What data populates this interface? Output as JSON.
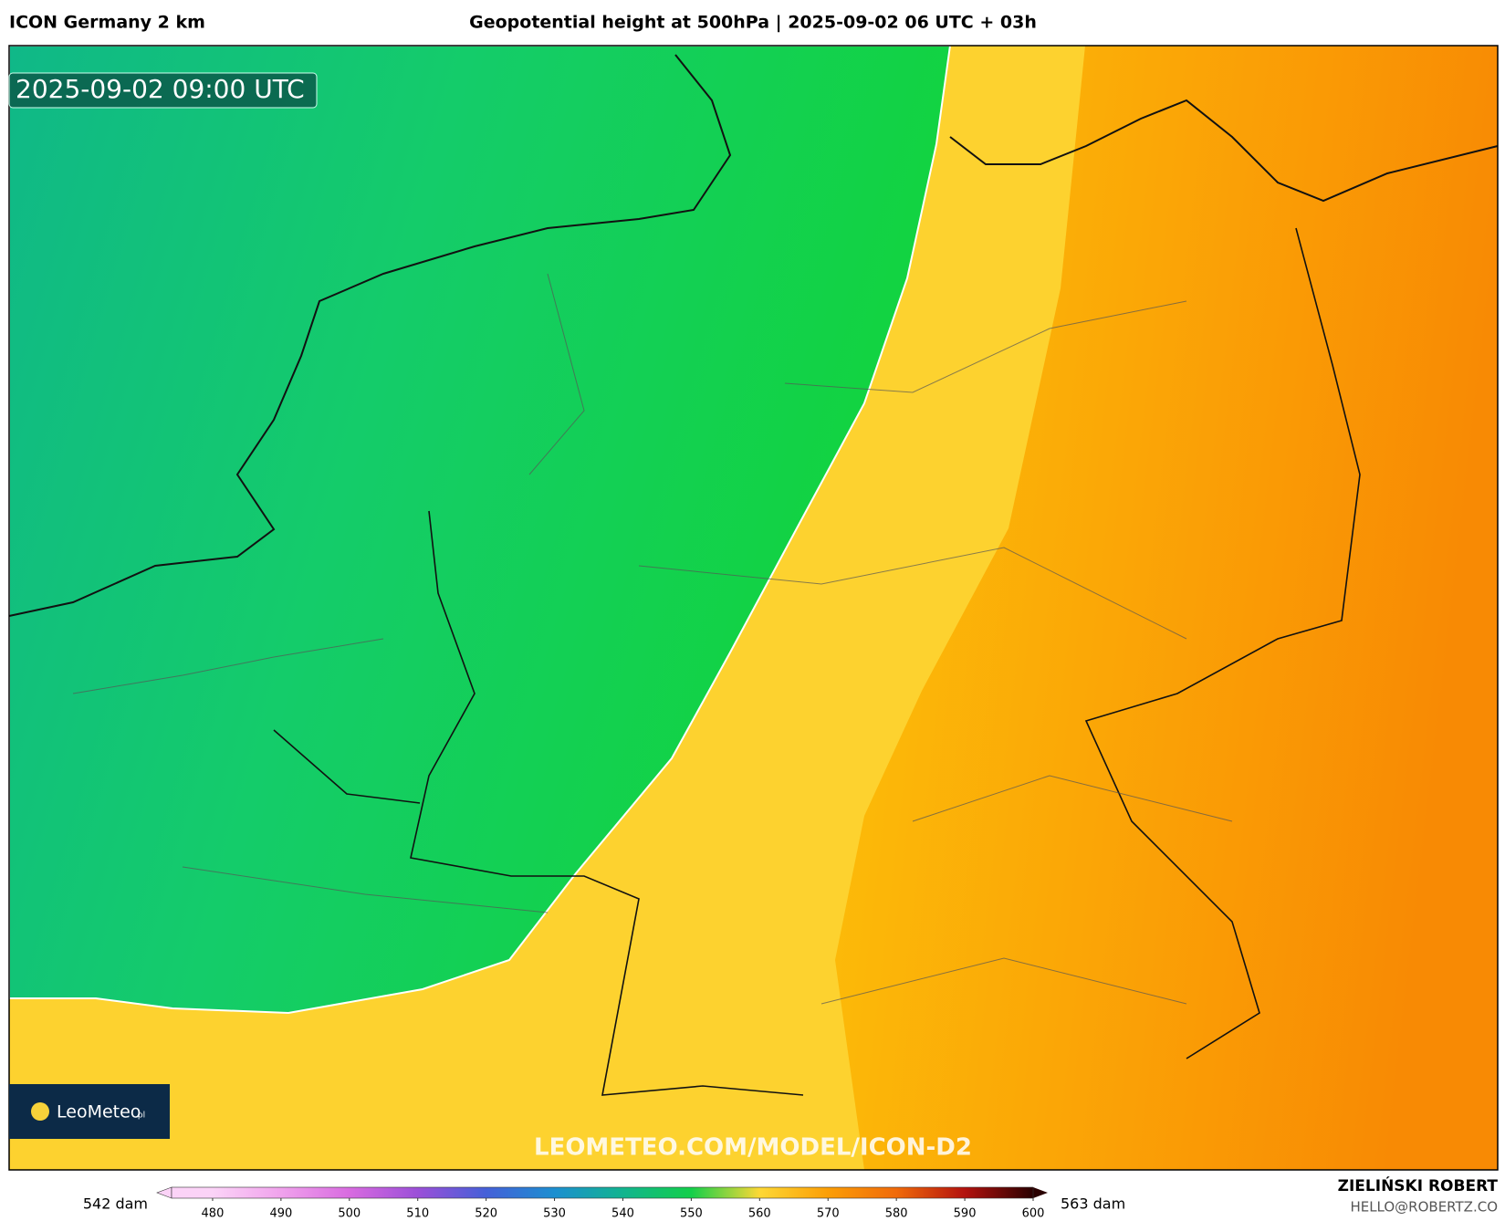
{
  "header": {
    "model": "ICON Germany 2 km",
    "title": "Geopotential height at 500hPa | 2025-09-02 06 UTC + 03h"
  },
  "map": {
    "timestamp": "2025-09-02 09:00 UTC",
    "logo": "LeoMeteo",
    "logo_suffix": ".pl",
    "watermark": "LEOMETEO.COM/MODEL/ICON-D2"
  },
  "colorbar": {
    "min_label": "542 dam",
    "max_label": "563 dam",
    "range": [
      474,
      600
    ],
    "ticks": [
      480,
      490,
      500,
      510,
      520,
      530,
      540,
      550,
      560,
      570,
      580,
      590,
      600
    ],
    "colors": [
      "#fbd3f7",
      "#f0a2ec",
      "#d86be0",
      "#9b4fd8",
      "#4560d8",
      "#1c8fd0",
      "#12b48f",
      "#13cf4a",
      "#fdd835",
      "#fb9e06",
      "#f06a0a",
      "#b3120e",
      "#2a0000"
    ]
  },
  "footer": {
    "author": "ZIELIŃSKI ROBERT",
    "email": "HELLO@ROBERTZ.CO"
  }
}
